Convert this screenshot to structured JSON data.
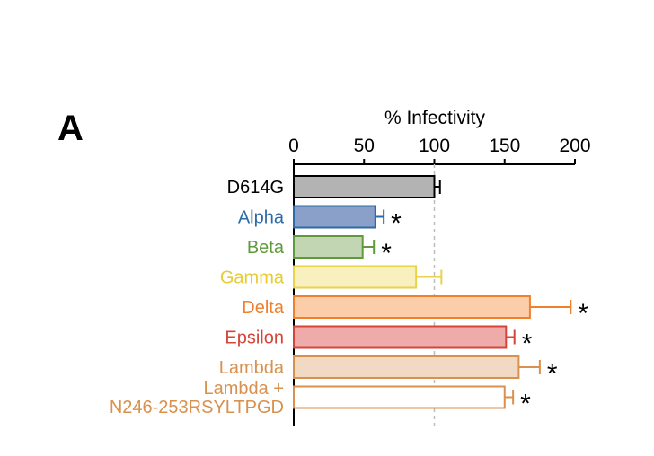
{
  "panel_label": "A",
  "chart_data": {
    "type": "bar",
    "orientation": "horizontal",
    "xlabel": "% Infectivity",
    "xlim": [
      0,
      200
    ],
    "xticks": [
      "0",
      "50",
      "100",
      "150",
      "200"
    ],
    "reference_line": 100,
    "grid": false,
    "categories": [
      {
        "label": "D614G",
        "value": 100,
        "error": 4,
        "significant": false,
        "label_color": "#000000",
        "stroke": "#000000",
        "fill": "#b3b3b3"
      },
      {
        "label": "Alpha",
        "value": 58,
        "error": 6,
        "significant": true,
        "label_color": "#2e6aa8",
        "stroke": "#2e6aa8",
        "fill": "#8aa0c8"
      },
      {
        "label": "Beta",
        "value": 49,
        "error": 8,
        "significant": true,
        "label_color": "#5f9a3c",
        "stroke": "#5f9a3c",
        "fill": "#c2d6b4"
      },
      {
        "label": "Gamma",
        "value": 87,
        "error": 18,
        "significant": false,
        "label_color": "#e8cc2e",
        "stroke": "#e8d34a",
        "fill": "#f8f0bf"
      },
      {
        "label": "Delta",
        "value": 168,
        "error": 29,
        "significant": true,
        "label_color": "#f07f2e",
        "stroke": "#f07f2e",
        "fill": "#fbcea9"
      },
      {
        "label": "Epsilon",
        "value": 151,
        "error": 6,
        "significant": true,
        "label_color": "#d4453a",
        "stroke": "#d4453a",
        "fill": "#eeabaa"
      },
      {
        "label": "Lambda",
        "value": 160,
        "error": 15,
        "significant": true,
        "label_color": "#d8914e",
        "stroke": "#d8914e",
        "fill": "#f1d9c3"
      },
      {
        "label": "Lambda +\nN246-253RSYLTPGD",
        "value": 150,
        "error": 6,
        "significant": true,
        "label_color": "#d8914e",
        "stroke": "#d8914e",
        "fill": "#ffffff"
      }
    ],
    "significance_marker": "*"
  }
}
